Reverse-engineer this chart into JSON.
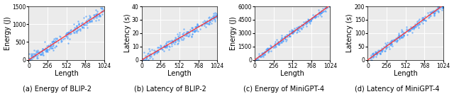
{
  "subplots": [
    {
      "ylabel": "Energy (J)",
      "xlabel": "Length",
      "caption": "(a) Energy of BLIP-2",
      "xlim": [
        0,
        1024
      ],
      "ylim": [
        0,
        1500
      ],
      "yticks": [
        0,
        500,
        1000,
        1500
      ],
      "xticks": [
        0,
        256,
        512,
        768,
        1024
      ],
      "slope": 1.35,
      "intercept": 0,
      "noise_scale": 80,
      "n_points": 220,
      "seed": 42
    },
    {
      "ylabel": "Latency (s)",
      "xlabel": "Length",
      "caption": "(b) Latency of BLIP-2",
      "xlim": [
        0,
        1024
      ],
      "ylim": [
        0,
        40
      ],
      "yticks": [
        0,
        10,
        20,
        30,
        40
      ],
      "xticks": [
        0,
        256,
        512,
        768,
        1024
      ],
      "slope": 0.032,
      "intercept": 0,
      "noise_scale": 1.8,
      "n_points": 220,
      "seed": 43
    },
    {
      "ylabel": "Energy (J)",
      "xlabel": "Length",
      "caption": "(c) Energy of MiniGPT-4",
      "xlim": [
        0,
        1024
      ],
      "ylim": [
        0,
        6000
      ],
      "yticks": [
        0,
        1500,
        3000,
        4500,
        6000
      ],
      "xticks": [
        0,
        256,
        512,
        768,
        1024
      ],
      "slope": 6.0,
      "intercept": 0,
      "noise_scale": 180,
      "n_points": 220,
      "seed": 44
    },
    {
      "ylabel": "Latency (s)",
      "xlabel": "Length",
      "caption": "(d) Latency of MiniGPT-4",
      "xlim": [
        0,
        1024
      ],
      "ylim": [
        0,
        200
      ],
      "yticks": [
        0,
        50,
        100,
        150,
        200
      ],
      "xticks": [
        0,
        256,
        512,
        768,
        1024
      ],
      "slope": 0.2,
      "intercept": 0,
      "noise_scale": 7.0,
      "n_points": 220,
      "seed": 45
    }
  ],
  "dot_color": "#4499ff",
  "line_color": "#ff3333",
  "dot_size": 3,
  "dot_alpha": 0.65,
  "background_color": "#ebebeb",
  "caption_fontsize": 7,
  "tick_fontsize": 5.5,
  "label_fontsize": 7
}
